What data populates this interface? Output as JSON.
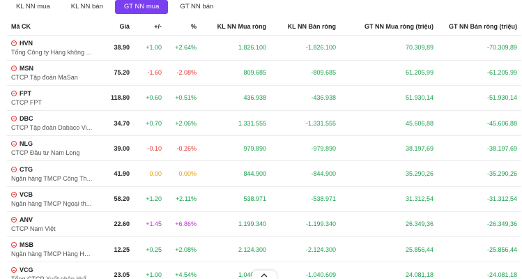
{
  "tabs": [
    {
      "label": "KL NN mua",
      "active": false
    },
    {
      "label": "KL NN bán",
      "active": false
    },
    {
      "label": "GT NN mua",
      "active": true
    },
    {
      "label": "GT NN bán",
      "active": false
    }
  ],
  "headers": {
    "symbol": "Mã CK",
    "price": "Giá",
    "change": "+/-",
    "percent": "%",
    "buy_vol": "KL NN Mua ròng",
    "sell_vol": "KL NN Bán ròng",
    "buy_val": "GT NN Mua ròng (triệu)",
    "sell_val": "GT NN Bán ròng (triệu)"
  },
  "colors": {
    "up": "#1aa04c",
    "down": "#e53935",
    "reference": "#e0a000",
    "ceiling": "#c330d8",
    "accent": "#7b3ff2"
  },
  "rows": [
    {
      "symbol": "HVN",
      "name": "Tổng Công ty Hàng không ...",
      "price": "38.90",
      "change": "+1.00",
      "percent": "+2.64%",
      "buy_vol": "1.826.100",
      "sell_vol": "-1.826.100",
      "buy_val": "70.309,89",
      "sell_val": "-70.309,89",
      "trend": "up"
    },
    {
      "symbol": "MSN",
      "name": "CTCP Tập đoàn MaSan",
      "price": "75.20",
      "change": "-1.60",
      "percent": "-2.08%",
      "buy_vol": "809.685",
      "sell_vol": "-809.685",
      "buy_val": "61.205,99",
      "sell_val": "-61.205,99",
      "trend": "down"
    },
    {
      "symbol": "FPT",
      "name": "CTCP FPT",
      "price": "118.80",
      "change": "+0.60",
      "percent": "+0.51%",
      "buy_vol": "436.938",
      "sell_vol": "-436.938",
      "buy_val": "51.930,14",
      "sell_val": "-51.930,14",
      "trend": "up"
    },
    {
      "symbol": "DBC",
      "name": "CTCP Tập đoàn Dabaco Vi...",
      "price": "34.70",
      "change": "+0.70",
      "percent": "+2.06%",
      "buy_vol": "1.331.555",
      "sell_vol": "-1.331.555",
      "buy_val": "45.606,88",
      "sell_val": "-45.606,88",
      "trend": "up"
    },
    {
      "symbol": "NLG",
      "name": "CTCP Đầu tư Nam Long",
      "price": "39.00",
      "change": "-0.10",
      "percent": "-0.26%",
      "buy_vol": "979.890",
      "sell_vol": "-979.890",
      "buy_val": "38.197,69",
      "sell_val": "-38.197,69",
      "trend": "down"
    },
    {
      "symbol": "CTG",
      "name": "Ngân hàng TMCP Công Th...",
      "price": "41.90",
      "change": "0.00",
      "percent": "0.00%",
      "buy_vol": "844.900",
      "sell_vol": "-844.900",
      "buy_val": "35.290,26",
      "sell_val": "-35.290,26",
      "trend": "ref"
    },
    {
      "symbol": "VCB",
      "name": "Ngân hàng TMCP Ngoại th...",
      "price": "58.20",
      "change": "+1.20",
      "percent": "+2.11%",
      "buy_vol": "538.971",
      "sell_vol": "-538.971",
      "buy_val": "31.312,54",
      "sell_val": "-31.312,54",
      "trend": "up"
    },
    {
      "symbol": "ANV",
      "name": "CTCP Nam Việt",
      "price": "22.60",
      "change": "+1.45",
      "percent": "+6.86%",
      "buy_vol": "1.199.340",
      "sell_vol": "-1.199.340",
      "buy_val": "26.349,36",
      "sell_val": "-26.349,36",
      "trend": "ceil"
    },
    {
      "symbol": "MSB",
      "name": "Ngân hàng TMCP Hàng Hải...",
      "price": "12.25",
      "change": "+0.25",
      "percent": "+2.08%",
      "buy_vol": "2.124.300",
      "sell_vol": "-2.124.300",
      "buy_val": "25.856,44",
      "sell_val": "-25.856,44",
      "trend": "up"
    },
    {
      "symbol": "VCG",
      "name": "Tổng CTCP Xuất nhập khẩu...",
      "price": "23.05",
      "change": "+1.00",
      "percent": "+4.54%",
      "buy_vol": "1.040.609",
      "sell_vol": "-1.040.609",
      "buy_val": "24.081,18",
      "sell_val": "-24.081,18",
      "trend": "up"
    }
  ]
}
